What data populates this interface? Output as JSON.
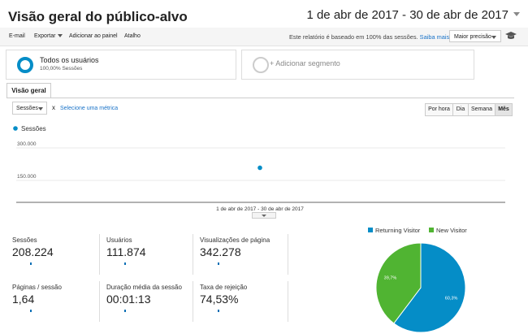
{
  "header": {
    "title": "Visão geral do público-alvo",
    "date_range": "1 de abr de 2017 - 30 de abr de 2017"
  },
  "toolbar": {
    "email": "E-mail",
    "export": "Exportar",
    "add_to_dashboard": "Adicionar ao painel",
    "shortcut": "Atalho",
    "report_note": "Este relatório é baseado em 100% das sessões.",
    "learn_more": "Saiba mais",
    "precision": "Maior precisão",
    "cap_icon": "graduation-cap-icon"
  },
  "segments": {
    "active_name": "Todos os usuários",
    "active_detail": "100,00% Sessões",
    "add_label": "+ Adicionar segmento"
  },
  "tabs": {
    "overview": "Visão geral"
  },
  "chart_controls": {
    "metric": "Sessões",
    "remove_icon": "x",
    "select_metric": "Selecione uma métrica",
    "granularity": [
      "Por hora",
      "Dia",
      "Semana",
      "Mês"
    ],
    "selected_granularity": "Mês"
  },
  "chart_data": {
    "type": "scatter",
    "legend": "Sessões",
    "x": [
      "1 de abr de 2017 - 30 de abr de 2017"
    ],
    "y": [
      208224
    ],
    "yticks": [
      "300.000",
      "150.000"
    ],
    "ylim": [
      0,
      450000
    ],
    "color": "#058dc7"
  },
  "stats": [
    {
      "label": "Sessões",
      "value": "208.224"
    },
    {
      "label": "Usuários",
      "value": "111.874"
    },
    {
      "label": "Visualizações de página",
      "value": "342.278"
    },
    {
      "label": "Páginas / sessão",
      "value": "1,64"
    },
    {
      "label": "Duração média da sessão",
      "value": "00:01:13"
    },
    {
      "label": "Taxa de rejeição",
      "value": "74,53%"
    }
  ],
  "pie": {
    "legend": [
      {
        "name": "Returning Visitor",
        "color": "#058dc7"
      },
      {
        "name": "New Visitor",
        "color": "#50b432"
      }
    ],
    "slices": [
      {
        "name": "Returning Visitor",
        "value": 60.3,
        "label": "60,3%",
        "color": "#058dc7"
      },
      {
        "name": "New Visitor",
        "value": 39.7,
        "label": "39,7%",
        "color": "#50b432"
      }
    ]
  }
}
